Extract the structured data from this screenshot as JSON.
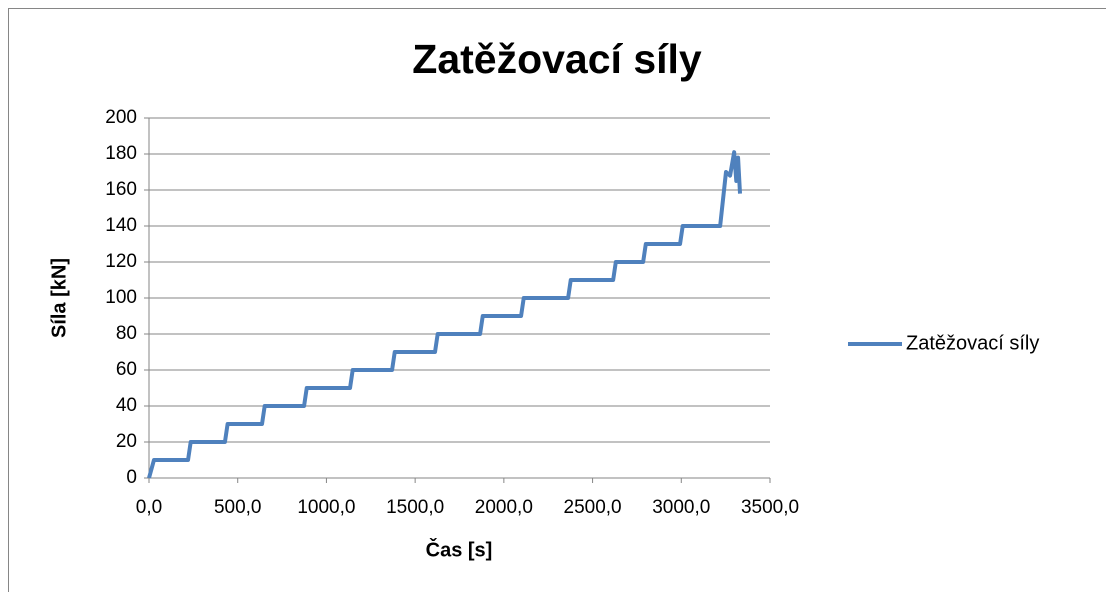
{
  "chart_data": {
    "type": "line",
    "title": "Zatěžovací síly",
    "x_label": "Čas [s]",
    "y_label": "Síla [kN]",
    "x": [
      0,
      28,
      220,
      235,
      428,
      443,
      637,
      652,
      874,
      889,
      1133,
      1148,
      1370,
      1385,
      1612,
      1627,
      1866,
      1881,
      2097,
      2112,
      2362,
      2377,
      2616,
      2631,
      2785,
      2800,
      2993,
      3008,
      3219,
      3252,
      3275,
      3298,
      3310,
      3320,
      3331
    ],
    "series": [
      {
        "name": "Zatěžovací síly",
        "color": "#4f81bd",
        "values": [
          0,
          10,
          10,
          20,
          20,
          30,
          30,
          40,
          40,
          50,
          50,
          60,
          60,
          70,
          70,
          80,
          80,
          90,
          90,
          100,
          100,
          110,
          110,
          120,
          120,
          130,
          130,
          140,
          140,
          170,
          168,
          181,
          165,
          178,
          158
        ]
      }
    ],
    "xlim": [
      0,
      3500
    ],
    "xticks": [
      {
        "value": 0,
        "label": "0,0"
      },
      {
        "value": 500,
        "label": "500,0"
      },
      {
        "value": 1000,
        "label": "1000,0"
      },
      {
        "value": 1500,
        "label": "1500,0"
      },
      {
        "value": 2000,
        "label": "2000,0"
      },
      {
        "value": 2500,
        "label": "2500,0"
      },
      {
        "value": 3000,
        "label": "3000,0"
      },
      {
        "value": 3500,
        "label": "3500,0"
      }
    ],
    "ylim": [
      0,
      200
    ],
    "yticks": [
      0,
      20,
      40,
      60,
      80,
      100,
      120,
      140,
      160,
      180,
      200
    ],
    "grid": true,
    "legend": "right"
  }
}
